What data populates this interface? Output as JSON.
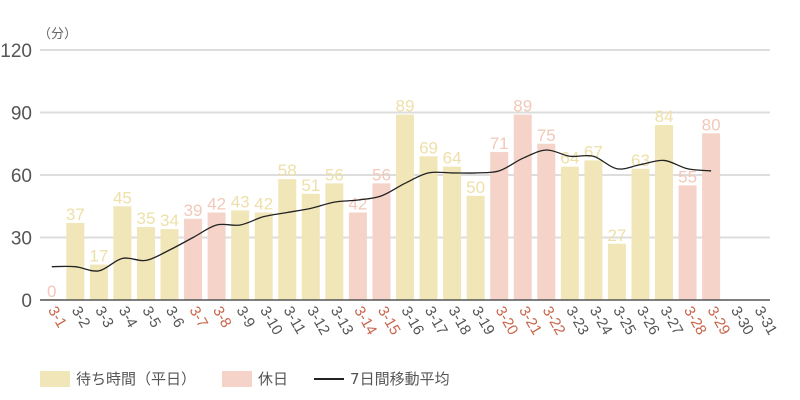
{
  "chart_data": {
    "type": "bar",
    "title": "",
    "unit_label": "（分）",
    "xlabel": "",
    "ylabel": "（分）",
    "ylim": [
      0,
      120
    ],
    "yticks": [
      0,
      30,
      60,
      90,
      120
    ],
    "grid": true,
    "legend_position": "bottom",
    "categories": [
      "3-1",
      "3-2",
      "3-3",
      "3-4",
      "3-5",
      "3-6",
      "3-7",
      "3-8",
      "3-9",
      "3-10",
      "3-11",
      "3-12",
      "3-13",
      "3-14",
      "3-15",
      "3-16",
      "3-17",
      "3-18",
      "3-19",
      "3-20",
      "3-21",
      "3-22",
      "3-23",
      "3-24",
      "3-25",
      "3-26",
      "3-27",
      "3-28",
      "3-29",
      "3-30",
      "3-31"
    ],
    "day_type": [
      "holiday",
      "weekday",
      "weekday",
      "weekday",
      "weekday",
      "weekday",
      "holiday",
      "holiday",
      "weekday",
      "weekday",
      "weekday",
      "weekday",
      "weekday",
      "holiday",
      "holiday",
      "weekday",
      "weekday",
      "weekday",
      "weekday",
      "holiday",
      "holiday",
      "holiday",
      "weekday",
      "weekday",
      "weekday",
      "weekday",
      "weekday",
      "holiday",
      "holiday",
      "weekday",
      "weekday"
    ],
    "series": [
      {
        "name": "待ち時間（平日）/休日",
        "type": "bar",
        "values": [
          0,
          37,
          17,
          45,
          35,
          34,
          39,
          42,
          43,
          42,
          58,
          51,
          56,
          42,
          56,
          89,
          69,
          64,
          50,
          71,
          89,
          75,
          64,
          67,
          27,
          63,
          84,
          55,
          80,
          null,
          null
        ]
      },
      {
        "name": "7日間移動平均",
        "type": "line",
        "values": [
          16,
          16,
          14,
          20,
          19,
          24,
          30,
          36,
          36,
          40,
          42,
          44,
          47,
          48,
          50,
          56,
          61,
          61,
          61,
          62,
          68,
          72,
          69,
          69,
          63,
          65,
          67,
          63,
          62,
          null,
          null
        ]
      }
    ],
    "colors": {
      "weekday_bar": "#f0e6b8",
      "holiday_bar": "#f5d3c8",
      "weekday_label": "#eee0a8",
      "holiday_label": "#f2c8b8",
      "weekday_axis_text": "#555555",
      "holiday_axis_text": "#c8644a",
      "line": "#222222",
      "grid": "#dddddd",
      "axis": "#555555"
    }
  },
  "legend": {
    "items": [
      {
        "label": "待ち時間（平日）",
        "kind": "weekday"
      },
      {
        "label": "休日",
        "kind": "holiday"
      },
      {
        "label": "7日間移動平均",
        "kind": "line"
      }
    ]
  }
}
